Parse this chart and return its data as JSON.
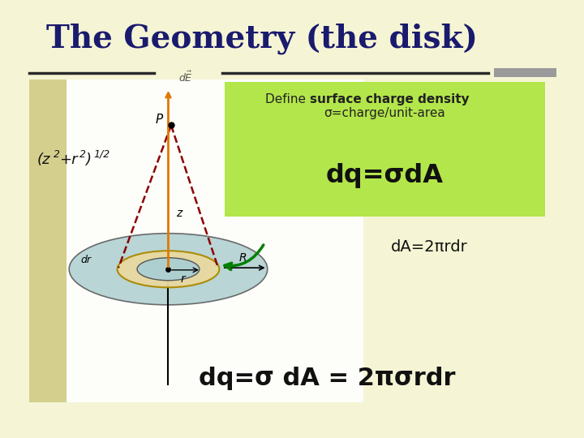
{
  "bg_color": "#f5f5d5",
  "title": "The Geometry (the disk)",
  "title_color": "#1a1a6e",
  "title_fontsize": 28,
  "box_color": "#b3e64a",
  "define_normal": "Define ",
  "define_bold": "surface charge density",
  "define_sub": "σ=charge/unit-area",
  "dq_sigma": "dq=σdA",
  "da_text": "dA=2πrdr",
  "final_eq": "dq=σ dA = 2πσrdr",
  "disk_color": "#aecfcf",
  "ring_color": "#e8d9a0",
  "ring_edge_color": "#aa8800",
  "bg_color_light": "#f0f0d0"
}
